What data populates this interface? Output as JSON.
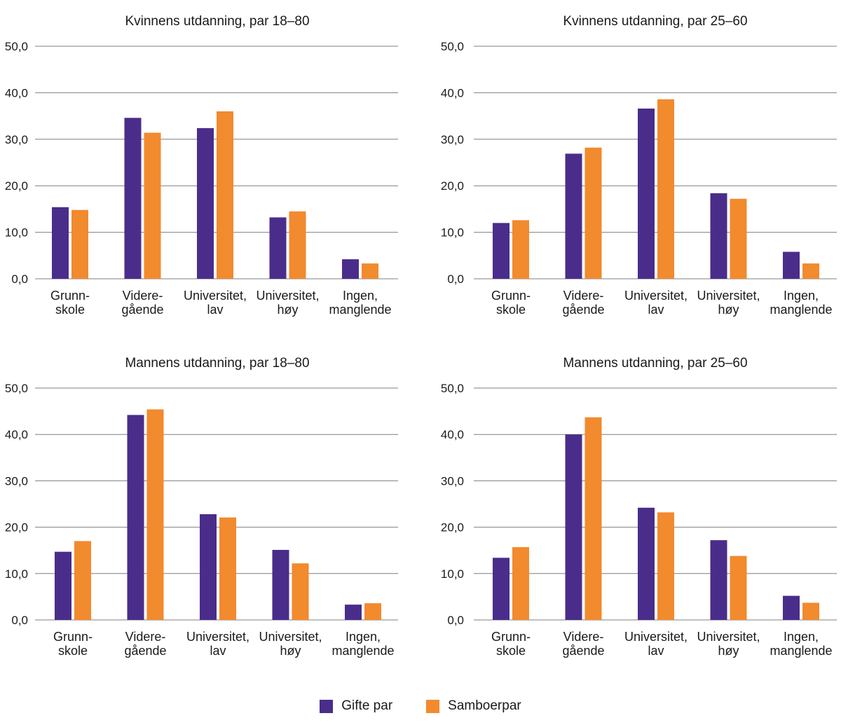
{
  "colors": {
    "gifte": "#4a2d8a",
    "samboer": "#f28a2e",
    "grid": "#7f7f7f",
    "text": "#1a1a1a"
  },
  "legend": [
    {
      "name": "Gifte par",
      "color": "#4a2d8a"
    },
    {
      "name": "Samboerpar",
      "color": "#f28a2e"
    }
  ],
  "chart_data": [
    {
      "type": "bar",
      "title": "Kvinnens utdanning, par 18–80",
      "categories": [
        [
          "Grunn-",
          "skole"
        ],
        [
          "Videre-",
          "gående"
        ],
        [
          "Universitet,",
          "lav"
        ],
        [
          "Universitet,",
          "høy"
        ],
        [
          "Ingen,",
          "manglende"
        ]
      ],
      "ylim": [
        0,
        50
      ],
      "yticks": [
        "0,0",
        "10,0",
        "20,0",
        "30,0",
        "40,0",
        "50,0"
      ],
      "series": [
        {
          "name": "Gifte par",
          "values": [
            15.4,
            34.6,
            32.4,
            13.2,
            4.2
          ]
        },
        {
          "name": "Samboerpar",
          "values": [
            14.8,
            31.4,
            36.0,
            14.5,
            3.3
          ]
        }
      ]
    },
    {
      "type": "bar",
      "title": "Kvinnens utdanning, par 25–60",
      "categories": [
        [
          "Grunn-",
          "skole"
        ],
        [
          "Videre-",
          "gående"
        ],
        [
          "Universitet,",
          "lav"
        ],
        [
          "Universitet,",
          "høy"
        ],
        [
          "Ingen,",
          "manglende"
        ]
      ],
      "ylim": [
        0,
        50
      ],
      "yticks": [
        "0,0",
        "10,0",
        "20,0",
        "30,0",
        "40,0",
        "50,0"
      ],
      "series": [
        {
          "name": "Gifte par",
          "values": [
            12.0,
            26.9,
            36.6,
            18.4,
            5.8
          ]
        },
        {
          "name": "Samboerpar",
          "values": [
            12.6,
            28.2,
            38.6,
            17.2,
            3.3
          ]
        }
      ]
    },
    {
      "type": "bar",
      "title": "Mannens utdanning, par 18–80",
      "categories": [
        [
          "Grunn-",
          "skole"
        ],
        [
          "Videre-",
          "gående"
        ],
        [
          "Universitet,",
          "lav"
        ],
        [
          "Universitet,",
          "høy"
        ],
        [
          "Ingen,",
          "manglende"
        ]
      ],
      "ylim": [
        0,
        50
      ],
      "yticks": [
        "0,0",
        "10,0",
        "20,0",
        "30,0",
        "40,0",
        "50,0"
      ],
      "series": [
        {
          "name": "Gifte par",
          "values": [
            14.7,
            44.2,
            22.8,
            15.1,
            3.3
          ]
        },
        {
          "name": "Samboerpar",
          "values": [
            17.0,
            45.4,
            22.1,
            12.2,
            3.6
          ]
        }
      ]
    },
    {
      "type": "bar",
      "title": "Mannens utdanning, par 25–60",
      "categories": [
        [
          "Grunn-",
          "skole"
        ],
        [
          "Videre-",
          "gående"
        ],
        [
          "Universitet,",
          "lav"
        ],
        [
          "Universitet,",
          "høy"
        ],
        [
          "Ingen,",
          "manglende"
        ]
      ],
      "ylim": [
        0,
        50
      ],
      "yticks": [
        "0,0",
        "10,0",
        "20,0",
        "30,0",
        "40,0",
        "50,0"
      ],
      "series": [
        {
          "name": "Gifte par",
          "values": [
            13.4,
            40.0,
            24.2,
            17.2,
            5.2
          ]
        },
        {
          "name": "Samboerpar",
          "values": [
            15.7,
            43.7,
            23.2,
            13.8,
            3.7
          ]
        }
      ]
    }
  ]
}
